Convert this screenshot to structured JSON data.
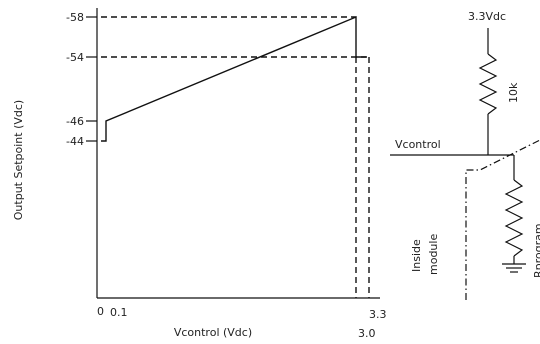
{
  "chart_data": {
    "type": "line",
    "xlabel": "Vcontrol (Vdc)",
    "ylabel": "Output Setpoint (Vdc)",
    "x_ticks": [
      "0",
      "0.1",
      "3.0",
      "3.3"
    ],
    "y_ticks": [
      "-58",
      "-54",
      "-46",
      "-44"
    ],
    "series": [
      {
        "x": [
          0,
          0.1,
          0.1,
          3.0,
          3.0,
          3.1
        ],
        "y": [
          -44,
          -44,
          -46,
          -58,
          -54,
          -54
        ]
      }
    ],
    "guides": [
      {
        "from": [
          0,
          -58
        ],
        "to": [
          3.0,
          -58
        ],
        "style": "dashed"
      },
      {
        "from": [
          0,
          -54
        ],
        "to": [
          3.3,
          -54
        ],
        "style": "dashed"
      },
      {
        "from": [
          3.0,
          -54
        ],
        "to": [
          3.0,
          -67
        ],
        "style": "dashed"
      },
      {
        "from": [
          3.3,
          -54
        ],
        "to": [
          3.3,
          -67
        ],
        "style": "dashed"
      }
    ],
    "grid": false
  },
  "schematic": {
    "supply_label": "3.3Vdc",
    "resistor_label": "10k",
    "node_label": "Vcontrol",
    "module_label_line1": "Inside",
    "module_label_line2": "module",
    "program_resistor_label": "Rprogram"
  }
}
